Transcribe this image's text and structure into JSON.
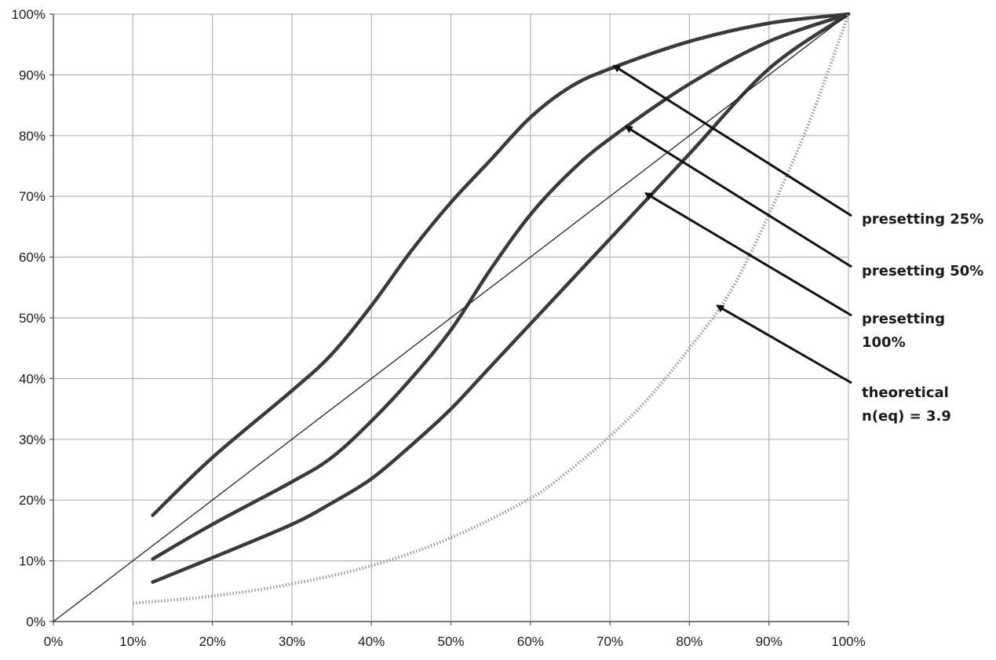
{
  "chart_data": {
    "type": "line",
    "title": "",
    "xlabel": "",
    "ylabel": "",
    "xlim": [
      0,
      100
    ],
    "ylim": [
      0,
      100
    ],
    "x_ticks": [
      "0%",
      "10%",
      "20%",
      "30%",
      "40%",
      "50%",
      "60%",
      "70%",
      "80%",
      "90%",
      "100%"
    ],
    "y_ticks": [
      "0%",
      "10%",
      "20%",
      "30%",
      "40%",
      "50%",
      "60%",
      "70%",
      "80%",
      "90%",
      "100%"
    ],
    "grid": true,
    "legend": "none",
    "series": [
      {
        "key": "presetting-25",
        "style": "solid-thick",
        "color": "#3a3a3a",
        "x": [
          12.5,
          20,
          30,
          35,
          40,
          45,
          50,
          55,
          60,
          65,
          70,
          80,
          90,
          100
        ],
        "y": [
          17.5,
          27,
          38,
          44,
          52,
          61,
          69,
          76,
          83,
          88,
          91,
          95.5,
          98.5,
          100
        ]
      },
      {
        "key": "presetting-50",
        "style": "solid-thick",
        "color": "#3a3a3a",
        "x": [
          12.5,
          20,
          30,
          35,
          40,
          45,
          50,
          55,
          60,
          65,
          70,
          80,
          90,
          100
        ],
        "y": [
          10.3,
          16,
          23,
          27,
          33,
          40,
          48,
          58,
          67,
          74,
          79.5,
          88.5,
          95.5,
          100
        ]
      },
      {
        "key": "presetting-100",
        "style": "solid-thick",
        "color": "#3a3a3a",
        "x": [
          12.5,
          20,
          30,
          35,
          40,
          45,
          50,
          55,
          60,
          65,
          70,
          80,
          90,
          100
        ],
        "y": [
          6.5,
          10.5,
          16,
          19.5,
          23.5,
          29,
          35,
          42,
          49,
          56,
          63,
          77,
          91,
          100
        ]
      },
      {
        "key": "diagonal",
        "style": "solid-thin",
        "color": "#222222",
        "x": [
          0,
          100
        ],
        "y": [
          0,
          100
        ]
      },
      {
        "key": "theoretical",
        "style": "dotted",
        "color": "#9a9a9a",
        "x": [
          10,
          20,
          30,
          40,
          50,
          60,
          65,
          70,
          75,
          80,
          85,
          90,
          95,
          100
        ],
        "y": [
          3,
          4.2,
          6.2,
          9.2,
          13.8,
          20.3,
          25,
          30.5,
          37,
          45,
          54,
          67,
          82,
          100
        ]
      }
    ],
    "annotations": [
      {
        "lines": [
          "presetting 25%"
        ],
        "target": [
          70.5,
          91.5
        ]
      },
      {
        "lines": [
          "presetting 50%"
        ],
        "target": [
          72,
          81.5
        ]
      },
      {
        "lines": [
          "presetting",
          "100%"
        ],
        "target": [
          74.5,
          70.5
        ]
      },
      {
        "lines": [
          "theoretical",
          "n(eq) = 3.9"
        ],
        "target": [
          83.5,
          52
        ]
      }
    ]
  }
}
